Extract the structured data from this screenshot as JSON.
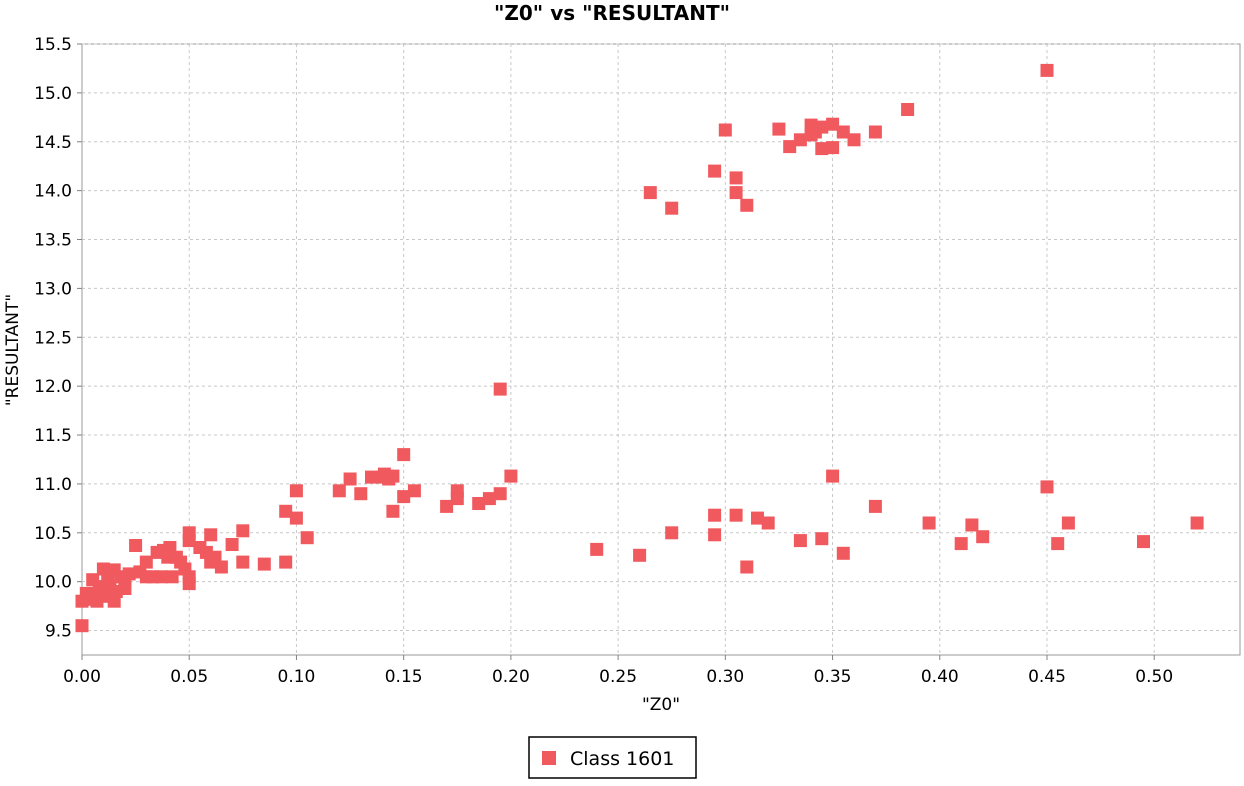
{
  "chart_data": {
    "type": "scatter",
    "title": "\"Z0\" vs \"RESULTANT\"",
    "xlabel": "\"Z0\"",
    "ylabel": "\"RESULTANT\"",
    "xlim": [
      0.0,
      0.54
    ],
    "ylim": [
      9.25,
      15.5
    ],
    "xticks": [
      "0.00",
      "0.05",
      "0.10",
      "0.15",
      "0.20",
      "0.25",
      "0.30",
      "0.35",
      "0.40",
      "0.45",
      "0.50"
    ],
    "yticks": [
      "9.5",
      "10.0",
      "10.5",
      "11.0",
      "11.5",
      "12.0",
      "12.5",
      "13.0",
      "13.5",
      "14.0",
      "14.5",
      "15.0",
      "15.5"
    ],
    "grid": true,
    "legend_position": "bottom-center",
    "colors": {
      "series": "#f05a5f",
      "grid": "#c8c8c8",
      "axis": "#808080"
    },
    "series": [
      {
        "name": "Class 1601",
        "points": [
          [
            0.0,
            9.55
          ],
          [
            0.0,
            9.8
          ],
          [
            0.002,
            9.88
          ],
          [
            0.003,
            9.82
          ],
          [
            0.005,
            10.02
          ],
          [
            0.005,
            9.88
          ],
          [
            0.007,
            9.8
          ],
          [
            0.008,
            9.95
          ],
          [
            0.01,
            10.13
          ],
          [
            0.01,
            9.85
          ],
          [
            0.012,
            10.0
          ],
          [
            0.013,
            9.95
          ],
          [
            0.015,
            10.12
          ],
          [
            0.015,
            9.8
          ],
          [
            0.016,
            9.9
          ],
          [
            0.018,
            10.05
          ],
          [
            0.02,
            10.0
          ],
          [
            0.02,
            9.93
          ],
          [
            0.022,
            10.08
          ],
          [
            0.025,
            10.37
          ],
          [
            0.027,
            10.1
          ],
          [
            0.03,
            10.05
          ],
          [
            0.03,
            10.2
          ],
          [
            0.033,
            10.05
          ],
          [
            0.035,
            10.3
          ],
          [
            0.037,
            10.05
          ],
          [
            0.038,
            10.32
          ],
          [
            0.04,
            10.25
          ],
          [
            0.041,
            10.35
          ],
          [
            0.042,
            10.05
          ],
          [
            0.044,
            10.25
          ],
          [
            0.046,
            10.2
          ],
          [
            0.048,
            10.13
          ],
          [
            0.05,
            10.5
          ],
          [
            0.05,
            10.42
          ],
          [
            0.05,
            10.05
          ],
          [
            0.05,
            9.98
          ],
          [
            0.055,
            10.35
          ],
          [
            0.058,
            10.3
          ],
          [
            0.06,
            10.48
          ],
          [
            0.06,
            10.2
          ],
          [
            0.062,
            10.25
          ],
          [
            0.065,
            10.15
          ],
          [
            0.07,
            10.38
          ],
          [
            0.075,
            10.52
          ],
          [
            0.075,
            10.2
          ],
          [
            0.085,
            10.18
          ],
          [
            0.095,
            10.2
          ],
          [
            0.095,
            10.72
          ],
          [
            0.1,
            10.93
          ],
          [
            0.1,
            10.65
          ],
          [
            0.105,
            10.45
          ],
          [
            0.12,
            10.93
          ],
          [
            0.125,
            11.05
          ],
          [
            0.13,
            10.9
          ],
          [
            0.135,
            11.07
          ],
          [
            0.14,
            11.07
          ],
          [
            0.141,
            11.1
          ],
          [
            0.143,
            11.05
          ],
          [
            0.145,
            11.08
          ],
          [
            0.145,
            10.72
          ],
          [
            0.15,
            10.87
          ],
          [
            0.15,
            11.3
          ],
          [
            0.155,
            10.93
          ],
          [
            0.17,
            10.77
          ],
          [
            0.175,
            10.93
          ],
          [
            0.175,
            10.85
          ],
          [
            0.185,
            10.8
          ],
          [
            0.19,
            10.85
          ],
          [
            0.195,
            10.9
          ],
          [
            0.195,
            11.97
          ],
          [
            0.2,
            11.08
          ],
          [
            0.24,
            10.33
          ],
          [
            0.26,
            10.27
          ],
          [
            0.265,
            13.98
          ],
          [
            0.275,
            13.82
          ],
          [
            0.275,
            10.5
          ],
          [
            0.295,
            14.2
          ],
          [
            0.295,
            10.68
          ],
          [
            0.295,
            10.48
          ],
          [
            0.3,
            14.62
          ],
          [
            0.305,
            14.13
          ],
          [
            0.305,
            13.98
          ],
          [
            0.305,
            10.68
          ],
          [
            0.31,
            13.85
          ],
          [
            0.31,
            10.15
          ],
          [
            0.315,
            10.65
          ],
          [
            0.32,
            10.6
          ],
          [
            0.325,
            14.63
          ],
          [
            0.33,
            14.45
          ],
          [
            0.335,
            14.52
          ],
          [
            0.335,
            10.42
          ],
          [
            0.34,
            14.57
          ],
          [
            0.34,
            14.67
          ],
          [
            0.342,
            14.6
          ],
          [
            0.345,
            14.65
          ],
          [
            0.345,
            14.43
          ],
          [
            0.345,
            10.44
          ],
          [
            0.35,
            14.68
          ],
          [
            0.35,
            14.44
          ],
          [
            0.35,
            11.08
          ],
          [
            0.355,
            14.6
          ],
          [
            0.355,
            10.29
          ],
          [
            0.36,
            14.52
          ],
          [
            0.37,
            14.6
          ],
          [
            0.37,
            10.77
          ],
          [
            0.385,
            14.83
          ],
          [
            0.395,
            10.6
          ],
          [
            0.41,
            10.39
          ],
          [
            0.415,
            10.58
          ],
          [
            0.42,
            10.46
          ],
          [
            0.45,
            15.23
          ],
          [
            0.45,
            10.97
          ],
          [
            0.455,
            10.39
          ],
          [
            0.46,
            10.6
          ],
          [
            0.495,
            10.41
          ],
          [
            0.52,
            10.6
          ]
        ]
      }
    ]
  }
}
